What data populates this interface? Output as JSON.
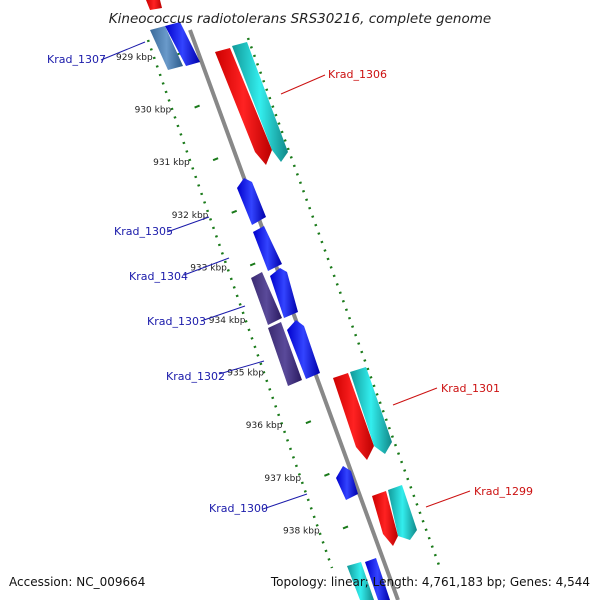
{
  "title": "Kineococcus radiotolerans SRS30216, complete genome",
  "footer": {
    "accession": "Accession: NC_009664",
    "summary": "Topology: linear; Length: 4,761,183 bp; Genes: 4,544"
  },
  "colors": {
    "axis": "#888888",
    "ticks": "#1a7a1a",
    "label_forward": "#1a1aaa",
    "label_reverse": "#cc1111",
    "gene_blue": "#1010ee",
    "gene_red": "#ee0000",
    "gene_cyan": "#22cccc",
    "gene_purple": "#4a3a8a",
    "gene_steel": "#4a7aaa"
  },
  "axis_ticks": [
    {
      "label": "929 kbp"
    },
    {
      "label": "930 kbp"
    },
    {
      "label": "931 kbp"
    },
    {
      "label": "932 kbp"
    },
    {
      "label": "933 kbp"
    },
    {
      "label": "934 kbp"
    },
    {
      "label": "935 kbp"
    },
    {
      "label": "936 kbp"
    },
    {
      "label": "937 kbp"
    },
    {
      "label": "938 kbp"
    }
  ],
  "gene_labels": [
    {
      "name": "Krad_1307",
      "strand": "forward"
    },
    {
      "name": "Krad_1306",
      "strand": "reverse"
    },
    {
      "name": "Krad_1305",
      "strand": "forward"
    },
    {
      "name": "Krad_1304",
      "strand": "forward"
    },
    {
      "name": "Krad_1303",
      "strand": "forward"
    },
    {
      "name": "Krad_1302",
      "strand": "forward"
    },
    {
      "name": "Krad_1301",
      "strand": "reverse"
    },
    {
      "name": "Krad_1300",
      "strand": "forward"
    },
    {
      "name": "Krad_1299",
      "strand": "reverse"
    }
  ]
}
